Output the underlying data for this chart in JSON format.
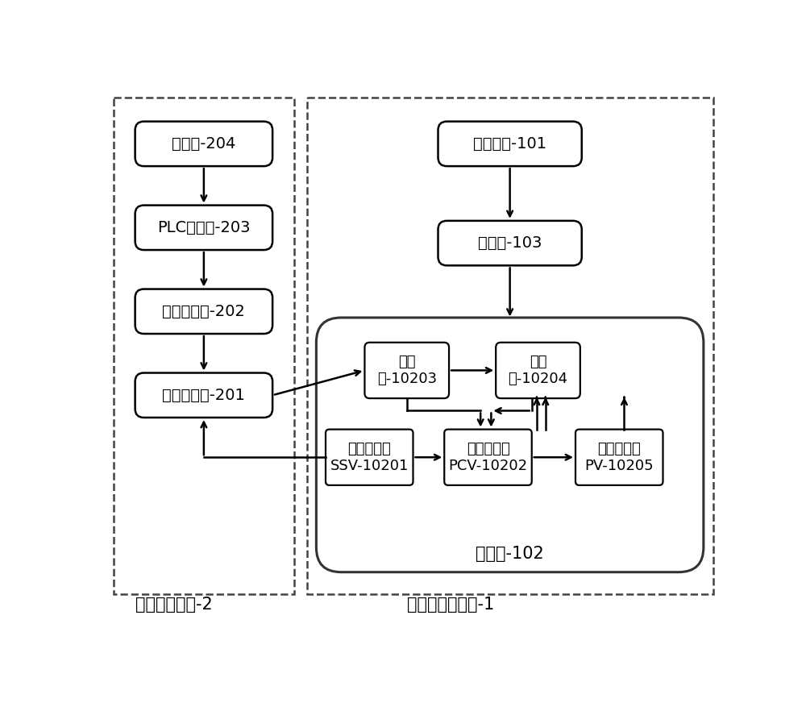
{
  "bg_color": "#ffffff",
  "left_panel_label": "远程开关装置-2",
  "right_panel_label": "天然气管路系统-1",
  "inner_panel_label": "调压撬-102",
  "font_size": 14,
  "font_size_inner": 13,
  "font_size_panel": 15
}
